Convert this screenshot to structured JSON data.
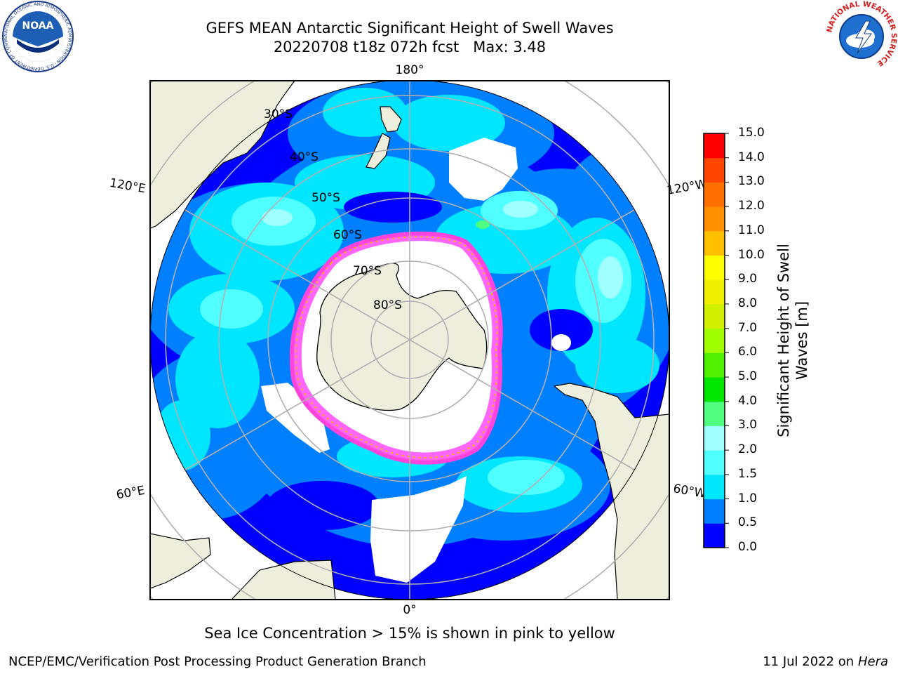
{
  "title": {
    "line1": "GEFS MEAN Antarctic Significant Height of Swell Waves",
    "line2": "20220708 t18z 072h fcst   Max: 3.48"
  },
  "map": {
    "projection": "south-polar-stereographic",
    "longitude_labels": [
      "180°",
      "120°E",
      "120°W",
      "60°E",
      "60°W",
      "0°"
    ],
    "latitude_labels": [
      "30°S",
      "40°S",
      "50°S",
      "60°S",
      "70°S",
      "80°S"
    ],
    "land_color": "#eeeedc",
    "ice_color": "#ffffff"
  },
  "colorbar": {
    "title": "Significant Height of Swell Waves [m]",
    "ticks": [
      "0.0",
      "0.5",
      "1.0",
      "1.5",
      "2.0",
      "3.0",
      "4.0",
      "5.0",
      "6.0",
      "7.0",
      "8.0",
      "9.0",
      "10.0",
      "11.0",
      "12.0",
      "13.0",
      "14.0",
      "15.0"
    ],
    "colors": [
      "#0000ff",
      "#0080ff",
      "#00e6ff",
      "#50ffff",
      "#a0ffff",
      "#50ff80",
      "#00e600",
      "#50f000",
      "#a0ff00",
      "#d0f000",
      "#f0f000",
      "#ffff00",
      "#ffc000",
      "#ff9000",
      "#ff7000",
      "#ff4500",
      "#ff0000"
    ]
  },
  "note": "Sea Ice Concentration > 15% is shown in pink to yellow",
  "footer": {
    "left": "NCEP/EMC/Verification Post Processing Product Generation Branch",
    "right_prefix": "11 Jul 2022 on ",
    "right_host": "Hera"
  },
  "logos": {
    "left": {
      "icon": "noaa-logo",
      "text": "NOAA",
      "ring_text": "NATIONAL OCEANIC AND ATMOSPHERIC ADMINISTRATION · U.S. DEPARTMENT OF COMMERCE"
    },
    "right": {
      "icon": "nws-logo",
      "ring_text": "NATIONAL WEATHER SERVICE"
    }
  }
}
